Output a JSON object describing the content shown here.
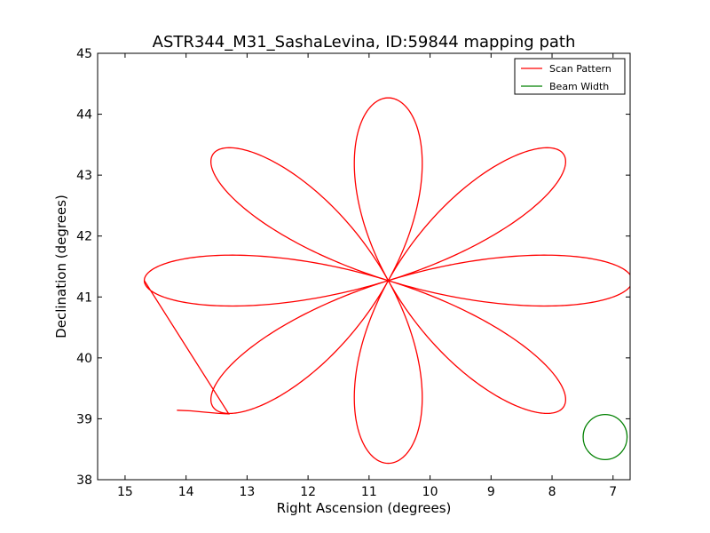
{
  "chart_data": {
    "type": "line",
    "title": "ASTR344_M31_SashaLevina, ID:59844 mapping path",
    "xlabel": "Right Ascension (degrees)",
    "ylabel": "Declination (degrees)",
    "xlim": [
      15.45,
      6.72
    ],
    "ylim": [
      38,
      45
    ],
    "x_inverted": true,
    "grid": false,
    "legend_position": "top-right",
    "xticks": [
      {
        "value": 15,
        "label": "15"
      },
      {
        "value": 14,
        "label": "14"
      },
      {
        "value": 13,
        "label": "13"
      },
      {
        "value": 12,
        "label": "12"
      },
      {
        "value": 11,
        "label": "11"
      },
      {
        "value": 10,
        "label": "10"
      },
      {
        "value": 9,
        "label": "9"
      },
      {
        "value": 8,
        "label": "8"
      },
      {
        "value": 7,
        "label": "7"
      }
    ],
    "yticks": [
      {
        "value": 38,
        "label": "38"
      },
      {
        "value": 39,
        "label": "39"
      },
      {
        "value": 40,
        "label": "40"
      },
      {
        "value": 41,
        "label": "41"
      },
      {
        "value": 42,
        "label": "42"
      },
      {
        "value": 43,
        "label": "43"
      },
      {
        "value": 44,
        "label": "44"
      },
      {
        "value": 45,
        "label": "45"
      }
    ],
    "series": [
      {
        "name": "Scan Pattern",
        "color": "#ff0000",
        "kind": "rose",
        "center": [
          10.685,
          41.269
        ],
        "amplitude_x": 4.0,
        "amplitude_y": 3.0,
        "petals": 8,
        "start_stub": [
          [
            14.15,
            39.14
          ],
          [
            13.92,
            39.13
          ],
          [
            13.71,
            39.11
          ],
          [
            13.48,
            39.09
          ],
          [
            13.3,
            39.08
          ]
        ]
      },
      {
        "name": "Beam Width",
        "color": "#008000",
        "kind": "circle",
        "center": [
          7.13,
          38.7
        ],
        "radius_x": 0.36,
        "radius_y": 0.37
      }
    ]
  }
}
